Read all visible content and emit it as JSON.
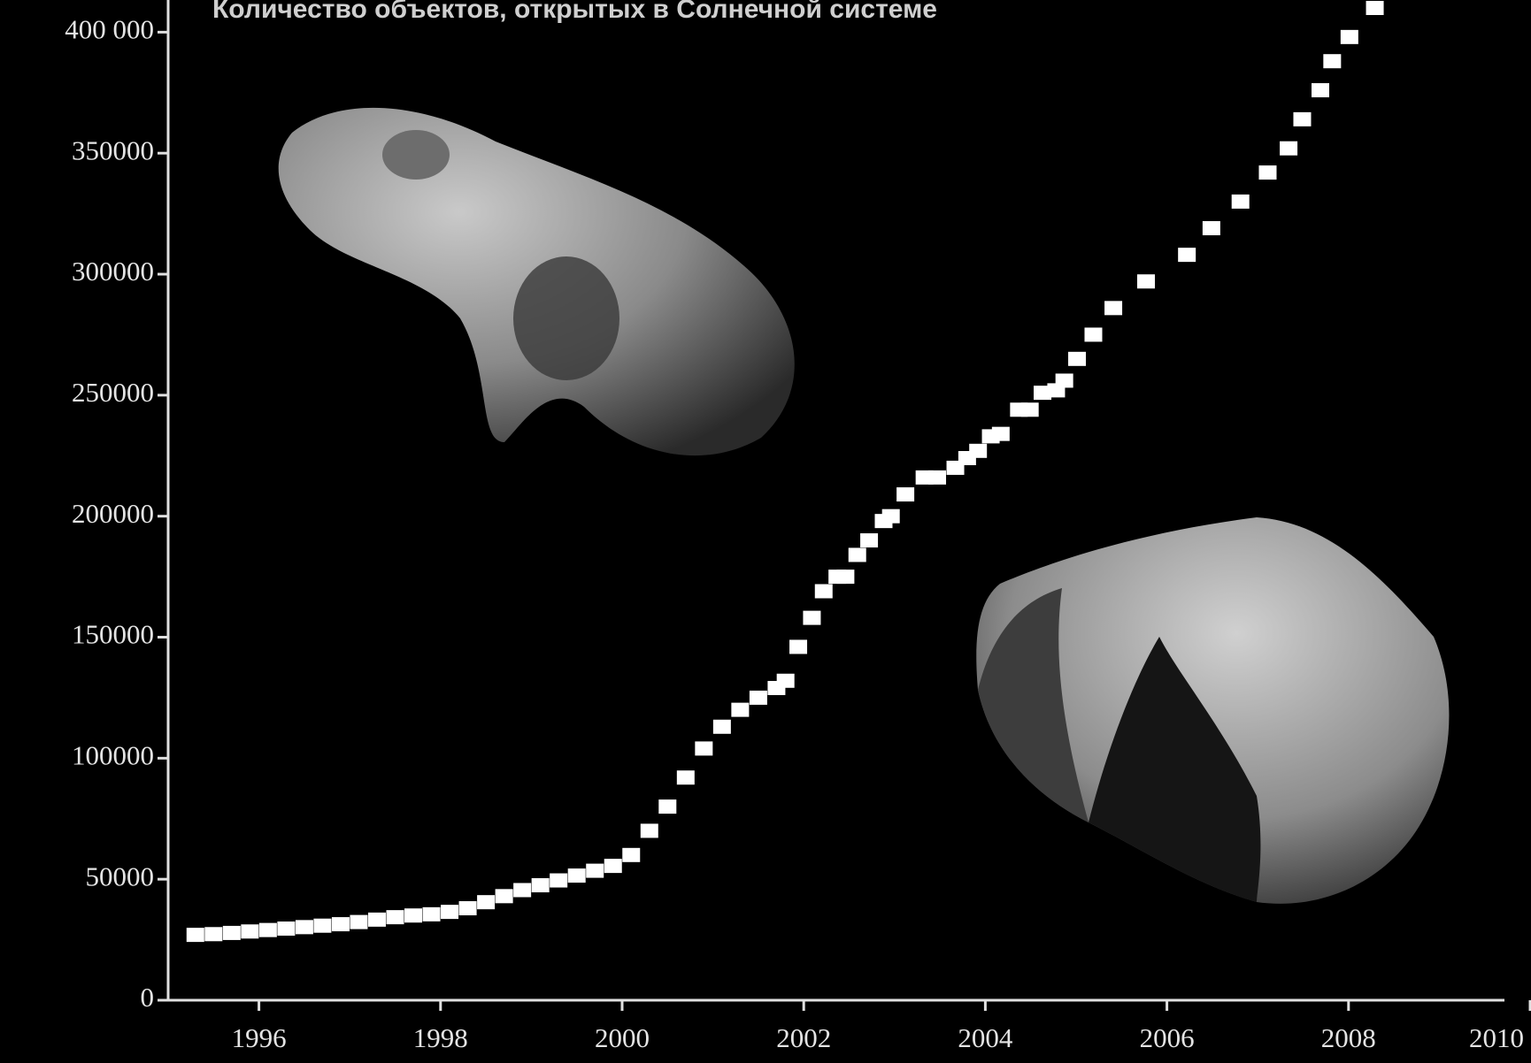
{
  "chart_data": {
    "type": "scatter",
    "title": "Количество объектов, открытых в Солнечной системе",
    "color": "#ffffff",
    "x": [
      1995.3,
      1995.5,
      1995.7,
      1995.9,
      1996.1,
      1996.3,
      1996.5,
      1996.7,
      1996.9,
      1997.1,
      1997.3,
      1997.5,
      1997.7,
      1997.9,
      1998.1,
      1998.3,
      1998.5,
      1998.7,
      1998.9,
      1999.1,
      1999.3,
      1999.5,
      1999.7,
      1999.9,
      2000.1,
      2000.3,
      2000.5,
      2000.7,
      2000.9,
      2001.1,
      2001.3,
      2001.5,
      2001.7,
      2001.8,
      2001.94,
      2002.09,
      2002.22,
      2002.37,
      2002.46,
      2002.59,
      2002.72,
      2002.88,
      2002.96,
      2003.12,
      2003.33,
      2003.47,
      2003.67,
      2003.8,
      2003.92,
      2004.06,
      2004.17,
      2004.37,
      2004.49,
      2004.63,
      2004.78,
      2004.87,
      2005.01,
      2005.19,
      2005.41,
      2005.77,
      2006.22,
      2006.49,
      2006.81,
      2007.11,
      2007.34,
      2007.49,
      2007.69,
      2007.82,
      2008.01,
      2008.29
    ],
    "values": [
      27000,
      27300,
      27800,
      28400,
      29000,
      29600,
      30200,
      30800,
      31400,
      32300,
      33300,
      34300,
      35000,
      35500,
      36500,
      38000,
      40500,
      43000,
      45500,
      47500,
      49500,
      51500,
      53500,
      55500,
      60000,
      70000,
      80000,
      92000,
      104000,
      113000,
      120000,
      125000,
      129000,
      132000,
      146000,
      158000,
      169000,
      175000,
      175000,
      184000,
      190000,
      198000,
      200000,
      209000,
      216000,
      216000,
      220000,
      224000,
      227000,
      233000,
      234000,
      244000,
      244000,
      251000,
      252000,
      256000,
      265000,
      275000,
      286000,
      297000,
      308000,
      319000,
      330000,
      342000,
      352000,
      364000,
      376000,
      388000,
      398000,
      410000
    ],
    "xlim": [
      1995,
      2010
    ],
    "xticks": [
      1996,
      1998,
      2000,
      2002,
      2004,
      2006,
      2008,
      2010
    ],
    "ylim": [
      0,
      410000
    ],
    "yticks": [
      0,
      50000,
      100000,
      150000,
      200000,
      250000,
      300000,
      350000,
      {
        "value": 400000,
        "label": "400 000"
      }
    ]
  }
}
